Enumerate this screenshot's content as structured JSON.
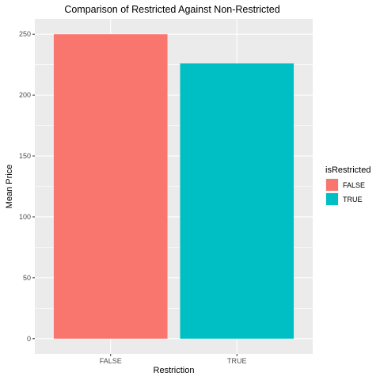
{
  "chart_data": {
    "type": "bar",
    "title": "Comparison of Restricted Against Non-Restricted",
    "xlabel": "Restriction",
    "ylabel": "Mean Price",
    "categories": [
      "FALSE",
      "TRUE"
    ],
    "values": [
      250,
      226
    ],
    "colors": [
      "#F8766D",
      "#00BFC4"
    ],
    "ylim": [
      -12.5,
      262.5
    ],
    "yticks": [
      0,
      50,
      100,
      150,
      200,
      250
    ],
    "grid": true,
    "panel_background": "#EBEBEB",
    "legend": {
      "title": "isRestricted",
      "placement": "right",
      "entries": [
        {
          "label": "FALSE",
          "color": "#F8766D"
        },
        {
          "label": "TRUE",
          "color": "#00BFC4"
        }
      ]
    }
  }
}
